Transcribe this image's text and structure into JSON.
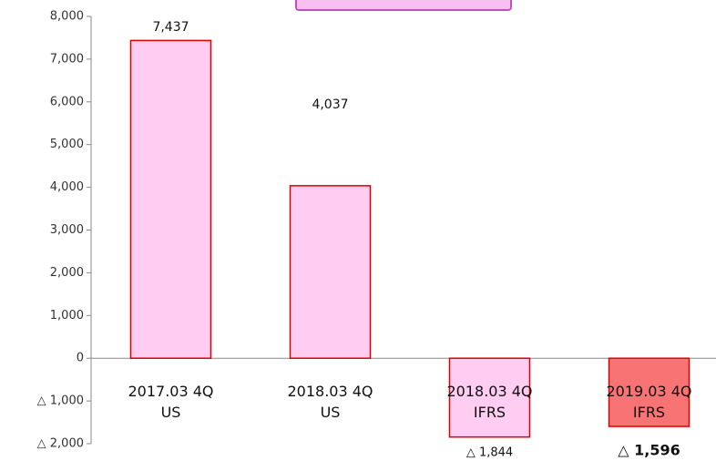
{
  "chart_data": {
    "type": "bar",
    "categories": [
      [
        "2017.03 4Q",
        "US"
      ],
      [
        "2018.03 4Q",
        "US"
      ],
      [
        "2018.03 4Q",
        "IFRS"
      ],
      [
        "2019.03 4Q",
        "IFRS"
      ]
    ],
    "values": [
      7437,
      4037,
      -1844,
      -1596
    ],
    "value_labels": [
      "7,437",
      "4,037",
      "△ 1,844",
      "△ 1,596"
    ],
    "colors": [
      "#ffccf2",
      "#ffccf2",
      "#ffccf2",
      "#f87474"
    ],
    "edge_color": "#e00000",
    "ylim": [
      -2000,
      8000
    ],
    "yticks": [
      {
        "value": -2000,
        "label": "△ 2,000"
      },
      {
        "value": -1000,
        "label": "△ 1,000"
      },
      0,
      {
        "value": 1000,
        "label": "1,000"
      },
      {
        "value": 2000,
        "label": "2,000"
      },
      {
        "value": 3000,
        "label": "3,000"
      },
      {
        "value": 4000,
        "label": "4,000"
      },
      {
        "value": 5000,
        "label": "5,000"
      },
      {
        "value": 6000,
        "label": "6,000"
      },
      {
        "value": 7000,
        "label": "7,000"
      },
      {
        "value": 8000,
        "label": "8,000"
      }
    ],
    "grid": false
  }
}
